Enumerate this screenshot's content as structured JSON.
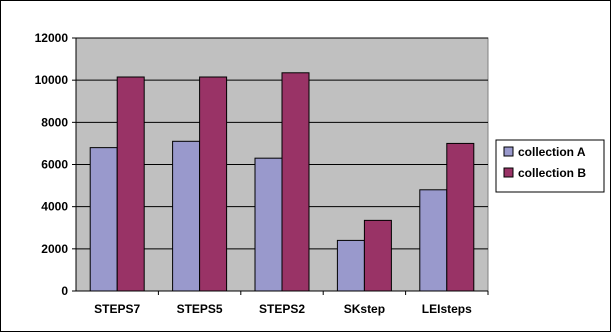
{
  "chart_data": {
    "type": "bar",
    "title": "",
    "xlabel": "",
    "ylabel": "",
    "categories": [
      "STEPS7",
      "STEPS5",
      "STEPS2",
      "SKstep",
      "LEIsteps"
    ],
    "series": [
      {
        "name": "collection A",
        "color": "#9999cc",
        "values": [
          6800,
          7100,
          6300,
          2400,
          4800
        ]
      },
      {
        "name": "collection B",
        "color": "#993366",
        "values": [
          10150,
          10150,
          10350,
          3350,
          7000
        ]
      }
    ],
    "ylim": [
      0,
      12000
    ],
    "yticks": [
      0,
      2000,
      4000,
      6000,
      8000,
      10000,
      12000
    ],
    "grid": true,
    "plot_background": "#c0c0c0",
    "legend_position": "right"
  }
}
